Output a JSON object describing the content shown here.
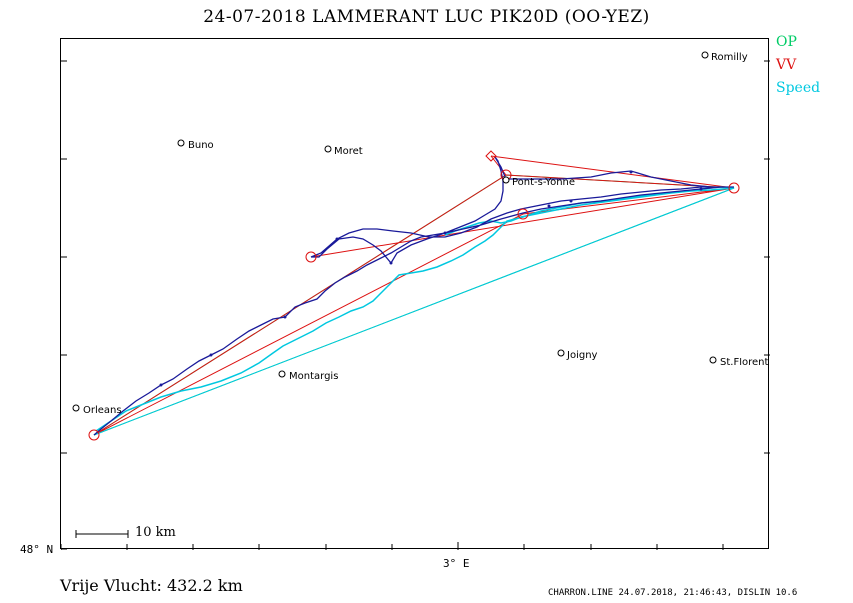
{
  "title": "24-07-2018   LAMMERANT LUC   PIK20D (OO-YEZ)",
  "legend": {
    "op": "OP",
    "vv": "VV",
    "speed": "Speed"
  },
  "colors": {
    "op": "#00cc66",
    "vv": "#dd1111",
    "speed": "#00c8e0",
    "track": "#1a1a9a"
  },
  "axes": {
    "lat_label": "48° N",
    "lon_label": "3° E"
  },
  "scale_label": "10  km",
  "distance_label": "Vrije Vlucht:  432.2 km",
  "footer": "CHARRON.LINE 24.07.2018, 21:46:43, DISLIN 10.6",
  "towns": [
    "Romilly",
    "Buno",
    "Moret",
    "Pont-s-Yonne",
    "Joigny",
    "St.Florentin",
    "Montargis",
    "Orleans"
  ]
}
